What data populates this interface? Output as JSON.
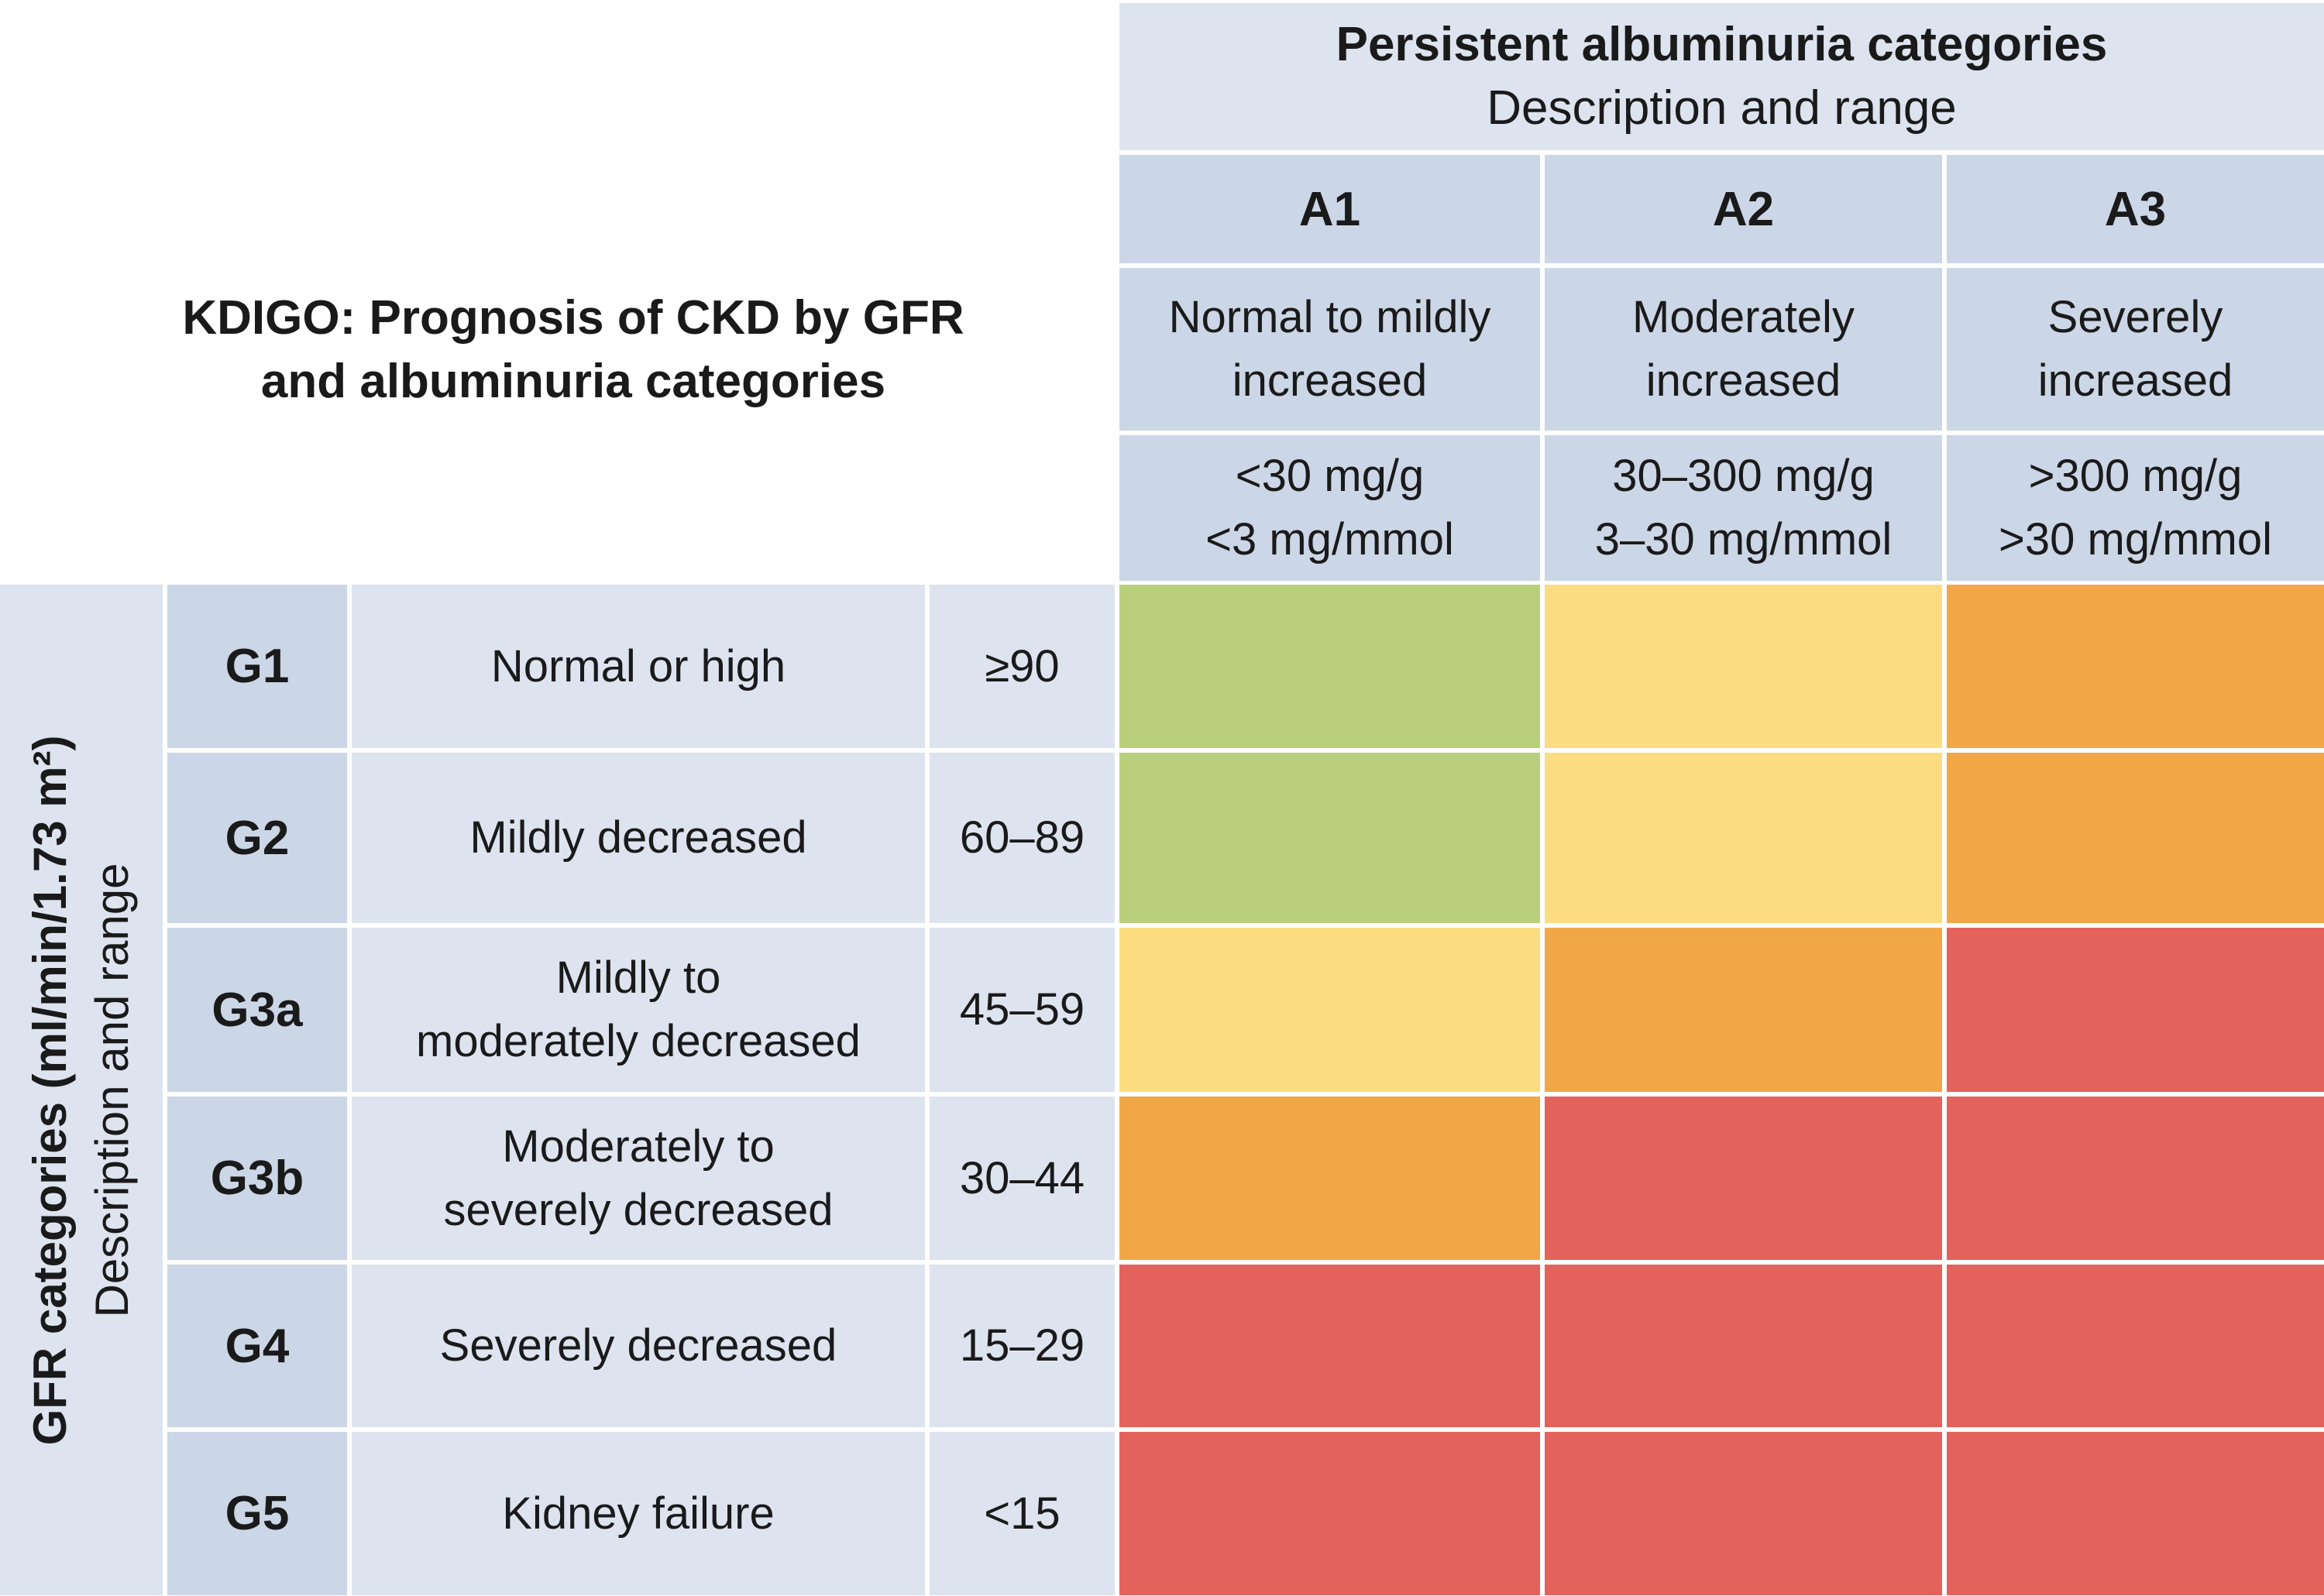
{
  "title": {
    "line1": "KDIGO: Prognosis of CKD by GFR",
    "line2": "and albuminuria categories"
  },
  "albuminuria_header": {
    "title": "Persistent albuminuria categories",
    "subtitle": "Description and range"
  },
  "albuminuria_categories": [
    {
      "code": "A1",
      "desc1": "Normal to mildly",
      "desc2": "increased",
      "range1": "<30 mg/g",
      "range2": "<3 mg/mmol"
    },
    {
      "code": "A2",
      "desc1": "Moderately",
      "desc2": "increased",
      "range1": "30–300 mg/g",
      "range2": "3–30 mg/mmol"
    },
    {
      "code": "A3",
      "desc1": "Severely",
      "desc2": "increased",
      "range1": ">300 mg/g",
      "range2": ">30 mg/mmol"
    }
  ],
  "gfr_header": {
    "title": "GFR categories (ml/min/1.73 m²)",
    "subtitle": "Description and range"
  },
  "gfr_categories": [
    {
      "code": "G1",
      "desc1": "Normal or high",
      "desc2": "",
      "range": "≥90"
    },
    {
      "code": "G2",
      "desc1": "Mildly decreased",
      "desc2": "",
      "range": "60–89"
    },
    {
      "code": "G3a",
      "desc1": "Mildly to",
      "desc2": "moderately decreased",
      "range": "45–59"
    },
    {
      "code": "G3b",
      "desc1": "Moderately to",
      "desc2": "severely decreased",
      "range": "30–44"
    },
    {
      "code": "G4",
      "desc1": "Severely decreased",
      "desc2": "",
      "range": "15–29"
    },
    {
      "code": "G5",
      "desc1": "Kidney failure",
      "desc2": "",
      "range": "<15"
    }
  ],
  "risk_colors": {
    "green": "#b9cf7c",
    "yellow": "#fbdc80",
    "orange": "#f2a746",
    "red": "#e4625c"
  },
  "risk_grid": [
    [
      "green",
      "yellow",
      "orange"
    ],
    [
      "green",
      "yellow",
      "orange"
    ],
    [
      "yellow",
      "orange",
      "red"
    ],
    [
      "orange",
      "red",
      "red"
    ],
    [
      "red",
      "red",
      "red"
    ],
    [
      "red",
      "red",
      "red"
    ]
  ]
}
